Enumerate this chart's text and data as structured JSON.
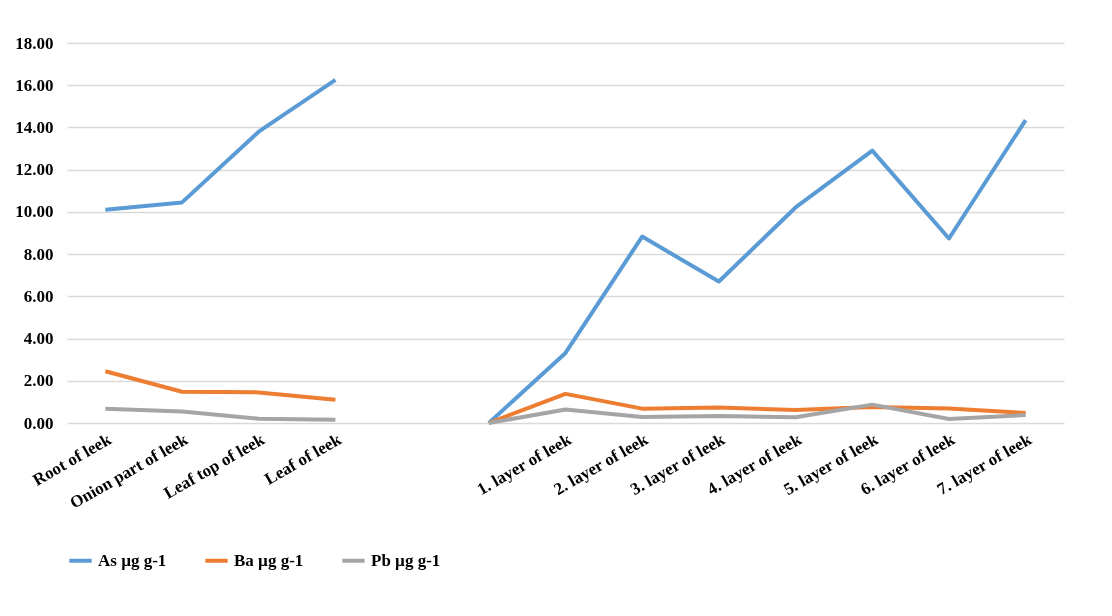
{
  "chart_data": {
    "type": "line",
    "categories": [
      "Root of leek",
      "Onion part of leek",
      "Leaf top of leek",
      "Leaf of leek",
      null,
      null,
      "1. layer of leek",
      "2. layer of leek",
      "3. layer of leek",
      "4. layer of leek",
      "5. layer of leek",
      "6. layer of leek",
      "7. layer of leek"
    ],
    "series": [
      {
        "name": "As µg g-1",
        "color": "#5b9bd5",
        "values": [
          10.1,
          10.45,
          13.8,
          16.25,
          null,
          0,
          3.32,
          8.83,
          6.7,
          10.21,
          12.9,
          8.74,
          14.35
        ]
      },
      {
        "name": "Ba µg g-1",
        "color": "#ed7d31",
        "values": [
          2.45,
          1.48,
          1.45,
          1.1,
          null,
          0,
          1.38,
          0.68,
          0.73,
          0.61,
          0.76,
          0.69,
          0.47
        ]
      },
      {
        "name": "Pb µg g-1",
        "color": "#a5a5a5",
        "values": [
          0.68,
          0.55,
          0.2,
          0.15,
          null,
          0,
          0.64,
          0.28,
          0.33,
          0.27,
          0.87,
          0.19,
          0.38
        ]
      }
    ],
    "ylim": [
      0,
      18
    ],
    "yticks": [
      {
        "value": 0,
        "label": "0.00"
      },
      {
        "value": 2,
        "label": "2.00"
      },
      {
        "value": 4,
        "label": "4.00"
      },
      {
        "value": 6,
        "label": "6.00"
      },
      {
        "value": 8,
        "label": "8.00"
      },
      {
        "value": 10,
        "label": "10.00"
      },
      {
        "value": 12,
        "label": "12.00"
      },
      {
        "value": 14,
        "label": "14.00"
      },
      {
        "value": 16,
        "label": "16.00"
      },
      {
        "value": 18,
        "label": "18.00"
      }
    ],
    "grid": "y",
    "legend": "bottom",
    "marker": "none",
    "line_style": "solid"
  }
}
